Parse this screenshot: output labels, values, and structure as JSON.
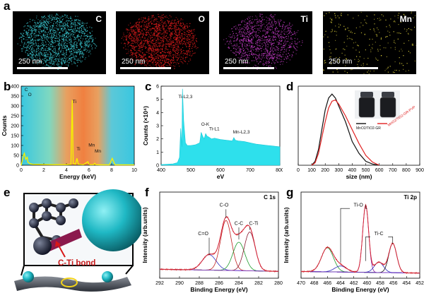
{
  "panels": {
    "a": "a",
    "b": "b",
    "c": "c",
    "d": "d",
    "e": "e",
    "f": "f",
    "g": "g"
  },
  "maps": [
    {
      "element": "C",
      "scale": "250 nm",
      "color": "#39c6cf"
    },
    {
      "element": "O",
      "scale": "250 nm",
      "color": "#e01c1c"
    },
    {
      "element": "Ti",
      "scale": "250 nm",
      "color": "#c23ac4"
    },
    {
      "element": "Mn",
      "scale": "250 nm",
      "color": "#d9cc3a"
    }
  ],
  "schematic": {
    "bond_label": "C-Ti bond"
  },
  "chart_data": [
    {
      "id": "b",
      "type": "line",
      "xlabel": "Energy (keV)",
      "ylabel": "Counts",
      "xlim": [
        0,
        10
      ],
      "ylim": [
        0,
        400
      ],
      "xticks": [
        0,
        2,
        4,
        6,
        8,
        10
      ],
      "yticks": [
        0,
        50,
        100,
        150,
        200,
        250,
        300,
        350,
        400
      ],
      "annotations": [
        {
          "text": "C",
          "x": 0.3,
          "y": 375
        },
        {
          "text": "O",
          "x": 0.6,
          "y": 350
        },
        {
          "text": "Ti",
          "x": 4.55,
          "y": 315
        },
        {
          "text": "Ti",
          "x": 4.9,
          "y": 75
        },
        {
          "text": "Mn",
          "x": 5.95,
          "y": 95
        },
        {
          "text": "Mn",
          "x": 6.5,
          "y": 65
        }
      ],
      "series": [
        {
          "x": [
            0,
            0.2,
            0.28,
            0.4,
            0.53,
            0.6,
            0.8,
            1,
            2,
            3,
            4,
            4.4,
            4.51,
            4.6,
            4.8,
            4.93,
            5.05,
            5.5,
            5.9,
            6,
            6.1,
            6.4,
            6.5,
            6.6,
            7,
            7.8,
            8.05,
            8.3,
            9,
            10
          ],
          "y": [
            0,
            50,
            60,
            30,
            40,
            15,
            8,
            5,
            4,
            3,
            3,
            5,
            330,
            10,
            5,
            35,
            5,
            3,
            18,
            5,
            3,
            3,
            10,
            3,
            2,
            2,
            35,
            2,
            2,
            2
          ]
        }
      ]
    },
    {
      "id": "c",
      "type": "area",
      "xlabel": "eV",
      "ylabel": "Counts (×10⁴)",
      "xlim": [
        400,
        800
      ],
      "ylim": [
        0,
        6
      ],
      "xticks": [
        400,
        500,
        600,
        700,
        800
      ],
      "yticks": [
        0,
        1,
        2,
        3,
        4,
        5,
        6
      ],
      "annotations": [
        {
          "text": "Ti-L2,3",
          "x": 458,
          "y": 5.1
        },
        {
          "text": "O-K",
          "x": 535,
          "y": 3.0
        },
        {
          "text": "Ti-L1",
          "x": 562,
          "y": 2.65
        },
        {
          "text": "Mn-L2,3",
          "x": 642,
          "y": 2.4
        }
      ],
      "series": [
        {
          "x": [
            400,
            440,
            455,
            462,
            466,
            470,
            472,
            476,
            482,
            488,
            500,
            515,
            530,
            535,
            540,
            545,
            550,
            555,
            560,
            570,
            580,
            600,
            620,
            640,
            645,
            650,
            660,
            680,
            700,
            720,
            740,
            760,
            780,
            800
          ],
          "y": [
            0.05,
            0.1,
            0.2,
            0.6,
            2.8,
            1.4,
            5.8,
            3.4,
            1.7,
            1.5,
            1.5,
            1.55,
            1.7,
            2.5,
            2.2,
            2.0,
            2.4,
            2.2,
            2.15,
            2.0,
            2.05,
            1.95,
            1.9,
            1.85,
            2.1,
            1.9,
            1.85,
            1.8,
            1.7,
            1.6,
            1.55,
            1.5,
            1.45,
            1.4
          ]
        }
      ]
    },
    {
      "id": "d",
      "type": "line",
      "xlabel": "size (nm)",
      "ylabel": "",
      "xlim": [
        0,
        900
      ],
      "ylim": [
        0,
        20
      ],
      "xticks": [
        0,
        100,
        200,
        300,
        400,
        500,
        600,
        700,
        800,
        900
      ],
      "legend": [
        "MnO2/TiO2-GR",
        "MnO2/TiO2-GR-PVP"
      ],
      "series": [
        {
          "name": "MnO2/TiO2-GR",
          "color": "#111111",
          "x": [
            100,
            125,
            150,
            175,
            200,
            225,
            250,
            275,
            300,
            350,
            400,
            450,
            500,
            550,
            600
          ],
          "y": [
            0,
            1,
            4,
            9,
            14,
            17,
            18,
            17,
            15,
            11,
            6,
            3,
            1,
            0.3,
            0
          ]
        },
        {
          "name": "MnO2/TiO2-GR-PVP",
          "color": "#e02020",
          "x": [
            100,
            125,
            150,
            175,
            200,
            225,
            250,
            275,
            300,
            350,
            400,
            450,
            500,
            550,
            600
          ],
          "y": [
            0,
            0.6,
            3,
            7,
            11,
            14.5,
            16.2,
            16.5,
            15.5,
            12.5,
            9,
            5.5,
            2.5,
            0.8,
            0
          ]
        }
      ]
    },
    {
      "id": "f",
      "type": "line",
      "title": "C 1s",
      "xlabel": "Binding Energy (eV)",
      "ylabel": "Intensity (arb.units)",
      "xlim": [
        292,
        280
      ],
      "xticks": [
        292,
        290,
        288,
        286,
        284,
        282,
        280
      ],
      "annotations": [
        {
          "text": "C=O",
          "x": 287.6,
          "y": 0.5
        },
        {
          "text": "C-O",
          "x": 285.5,
          "y": 0.83
        },
        {
          "text": "C-C",
          "x": 284.0,
          "y": 0.62
        },
        {
          "text": "C-Ti",
          "x": 282.5,
          "y": 0.62
        }
      ]
    },
    {
      "id": "g",
      "type": "line",
      "title": "Ti 2p",
      "xlabel": "Binding Energy (eV)",
      "ylabel": "Intensity (arb.units)",
      "xlim": [
        470,
        452
      ],
      "xticks": [
        470,
        468,
        466,
        464,
        462,
        460,
        458,
        456,
        454,
        452
      ],
      "annotations": [
        {
          "text": "Ti-O",
          "x": 461.3,
          "y": 0.83
        },
        {
          "text": "Ti-C",
          "x": 458.2,
          "y": 0.5
        }
      ]
    }
  ]
}
